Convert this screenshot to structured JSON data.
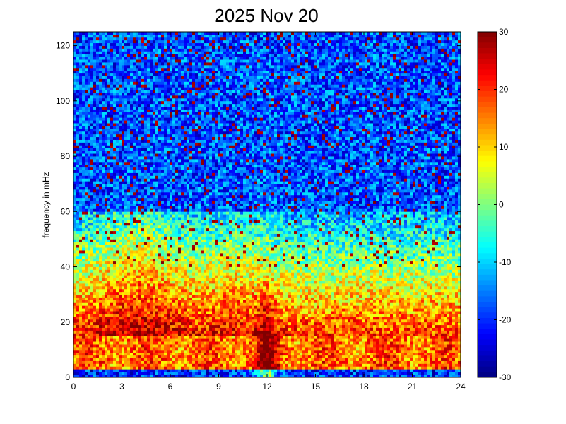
{
  "chart_data": {
    "type": "heatmap",
    "title": "2025 Nov 20",
    "xlabel": "",
    "ylabel": "frequency in mHz",
    "xlim": [
      0,
      24
    ],
    "ylim": [
      0,
      125
    ],
    "xticks": [
      "0",
      "3",
      "6",
      "9",
      "12",
      "15",
      "18",
      "21",
      "24"
    ],
    "yticks": [
      "0",
      "20",
      "40",
      "60",
      "80",
      "100",
      "120"
    ],
    "colorbar": {
      "range": [
        -30,
        30
      ],
      "ticks": [
        "30",
        "20",
        "10",
        "0",
        "-10",
        "-20",
        "-30"
      ],
      "colormap": "jet"
    },
    "grid": false,
    "features": {
      "low_band_power": 20,
      "mid_band_power": -5,
      "high_band_power": -22,
      "peak_time_hours": 12,
      "peak_power": 30
    }
  }
}
